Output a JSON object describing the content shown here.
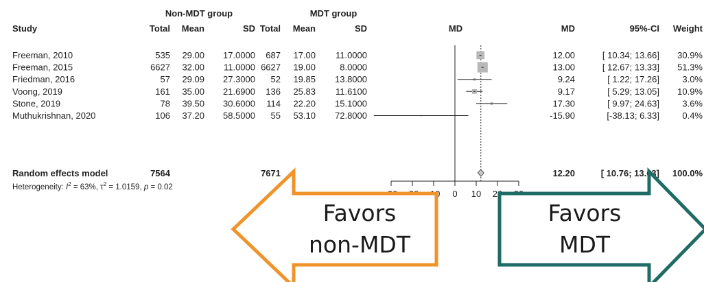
{
  "chart_data": {
    "type": "forest",
    "group_headers": [
      "Non-MDT group",
      "MDT group"
    ],
    "columns": [
      "Study",
      "Total",
      "Mean",
      "SD",
      "Total",
      "Mean",
      "SD",
      "MD",
      "MD",
      "95%-CI",
      "Weight"
    ],
    "studies": [
      {
        "study": "Freeman, 2010",
        "n1": "535",
        "mean1": "29.00",
        "sd1": "17.0000",
        "n2": "687",
        "mean2": "17.00",
        "sd2": "11.0000",
        "md": 12.0,
        "lo": 10.34,
        "hi": 13.66,
        "md_text": "12.00",
        "ci_text": "[ 10.34; 13.66]",
        "weight_text": "30.9%",
        "weight": 30.9
      },
      {
        "study": "Freeman, 2015",
        "n1": "6627",
        "mean1": "32.00",
        "sd1": "11.0000",
        "n2": "6627",
        "mean2": "19.00",
        "sd2": "8.0000",
        "md": 13.0,
        "lo": 12.67,
        "hi": 13.33,
        "md_text": "13.00",
        "ci_text": "[ 12.67; 13.33]",
        "weight_text": "51.3%",
        "weight": 51.3
      },
      {
        "study": "Friedman, 2016",
        "n1": "57",
        "mean1": "29.09",
        "sd1": "27.3000",
        "n2": "52",
        "mean2": "19.85",
        "sd2": "13.8000",
        "md": 9.24,
        "lo": 1.22,
        "hi": 17.26,
        "md_text": "9.24",
        "ci_text": "[ 1.22; 17.26]",
        "weight_text": "3.0%",
        "weight": 3.0
      },
      {
        "study": "Voong, 2019",
        "n1": "161",
        "mean1": "35.00",
        "sd1": "21.6900",
        "n2": "136",
        "mean2": "25.83",
        "sd2": "11.6100",
        "md": 9.17,
        "lo": 5.29,
        "hi": 13.05,
        "md_text": "9.17",
        "ci_text": "[ 5.29; 13.05]",
        "weight_text": "10.9%",
        "weight": 10.9
      },
      {
        "study": "Stone, 2019",
        "n1": "78",
        "mean1": "39.50",
        "sd1": "30.6000",
        "n2": "114",
        "mean2": "22.20",
        "sd2": "15.1000",
        "md": 17.3,
        "lo": 9.97,
        "hi": 24.63,
        "md_text": "17.30",
        "ci_text": "[ 9.97; 24.63]",
        "weight_text": "3.6%",
        "weight": 3.6
      },
      {
        "study": "Muthukrishnan, 2020",
        "n1": "106",
        "mean1": "37.20",
        "sd1": "58.5000",
        "n2": "55",
        "mean2": "53.10",
        "sd2": "72.8000",
        "md": -15.9,
        "lo": -38.13,
        "hi": 6.33,
        "md_text": "-15.90",
        "ci_text": "[-38.13; 6.33]",
        "weight_text": "0.4%",
        "weight": 0.4
      }
    ],
    "pooled": {
      "label": "Random effects model",
      "n1": "7564",
      "n2": "7671",
      "md": 12.2,
      "lo": 10.76,
      "hi": 13.63,
      "md_text": "12.20",
      "ci_text": "[ 10.76; 13.63]",
      "weight_text": "100.0%"
    },
    "heterogeneity": {
      "prefix": "Heterogeneity: ",
      "i2_symbol": "I",
      "i2_sup": "2",
      "i2_value": " = 63%, ",
      "tau_symbol": "τ",
      "tau_sup": "2",
      "tau_value": " = 1.0159, ",
      "p_symbol": "p",
      "p_value": " = 0.02"
    },
    "xlim": [
      -30,
      30
    ],
    "xticks": [
      -30,
      -20,
      -10,
      0,
      10,
      20,
      30
    ],
    "xtick_labels": [
      "-30",
      "-20",
      "-10",
      "0",
      "10",
      "20",
      "30"
    ]
  },
  "annotations": {
    "left_arrow": {
      "line1": "Favors",
      "line2": "non-MDT",
      "color": "#f0932a"
    },
    "right_arrow": {
      "line1": "Favors",
      "line2": "MDT",
      "color": "#1f6b66"
    }
  }
}
